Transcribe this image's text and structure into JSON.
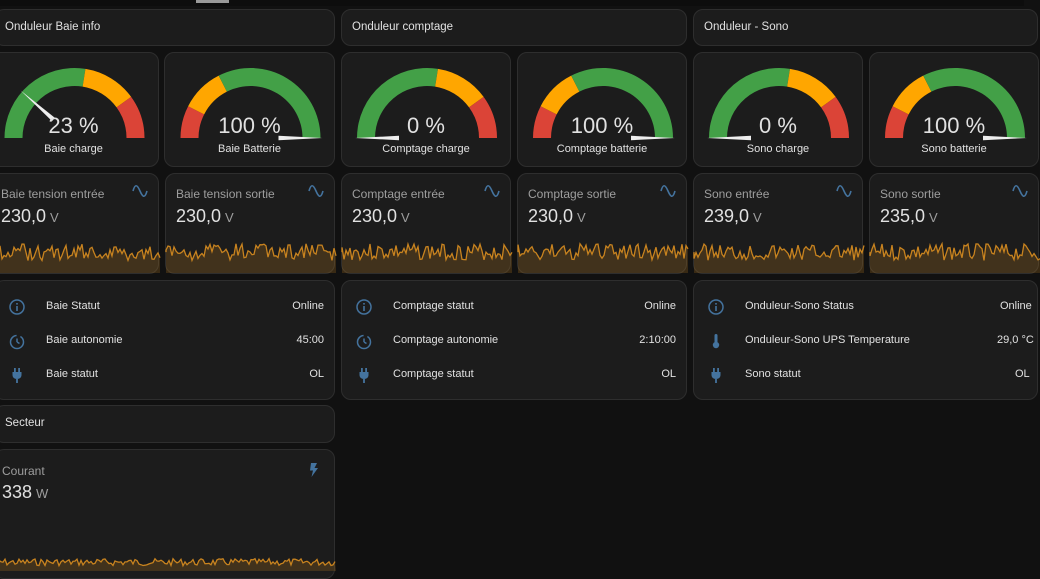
{
  "colors": {
    "accent": "#44739e",
    "green": "#43a047",
    "orange": "#ffa600",
    "red": "#db4437",
    "spark": "#c8831f"
  },
  "sections": [
    {
      "title": "Onduleur Baie info",
      "gauges": [
        {
          "label": "Baie charge",
          "value": 23,
          "display": "23 %",
          "severity": "normal"
        },
        {
          "label": "Baie Batterie",
          "value": 100,
          "display": "100 %",
          "severity": "inverted"
        }
      ],
      "sensors": [
        {
          "name": "Baie tension entrée",
          "value": "230,0",
          "unit": "V"
        },
        {
          "name": "Baie tension sortie",
          "value": "230,0",
          "unit": "V"
        }
      ],
      "entities": [
        {
          "icon": "information-outline-icon",
          "name": "Baie Statut",
          "value": "Online"
        },
        {
          "icon": "timer-icon",
          "name": "Baie autonomie",
          "value": "45:00"
        },
        {
          "icon": "power-plug-icon",
          "name": "Baie statut",
          "value": "OL"
        }
      ]
    },
    {
      "title": "Onduleur comptage",
      "gauges": [
        {
          "label": "Comptage charge",
          "value": 0,
          "display": "0 %",
          "severity": "normal"
        },
        {
          "label": "Comptage batterie",
          "value": 100,
          "display": "100 %",
          "severity": "inverted"
        }
      ],
      "sensors": [
        {
          "name": "Comptage entrée",
          "value": "230,0",
          "unit": "V"
        },
        {
          "name": "Comptage sortie",
          "value": "230,0",
          "unit": "V"
        }
      ],
      "entities": [
        {
          "icon": "information-outline-icon",
          "name": "Comptage statut",
          "value": "Online"
        },
        {
          "icon": "timer-icon",
          "name": "Comptage autonomie",
          "value": "2:10:00"
        },
        {
          "icon": "power-plug-icon",
          "name": "Comptage statut",
          "value": "OL"
        }
      ]
    },
    {
      "title": "Onduleur - Sono",
      "gauges": [
        {
          "label": "Sono charge",
          "value": 0,
          "display": "0 %",
          "severity": "normal"
        },
        {
          "label": "Sono batterie",
          "value": 100,
          "display": "100 %",
          "severity": "inverted"
        }
      ],
      "sensors": [
        {
          "name": "Sono entrée",
          "value": "239,0",
          "unit": "V"
        },
        {
          "name": "Sono sortie",
          "value": "235,0",
          "unit": "V"
        }
      ],
      "entities": [
        {
          "icon": "information-outline-icon",
          "name": "Onduleur-Sono Status",
          "value": "Online"
        },
        {
          "icon": "thermometer-icon",
          "name": "Onduleur-Sono UPS Temperature",
          "value": "29,0 °C"
        },
        {
          "icon": "power-plug-icon",
          "name": "Sono statut",
          "value": "OL"
        }
      ]
    }
  ],
  "secteur": {
    "title": "Secteur",
    "sensor": {
      "name": "Courant",
      "value": "338",
      "unit": "W",
      "icon": "flash-icon"
    }
  }
}
